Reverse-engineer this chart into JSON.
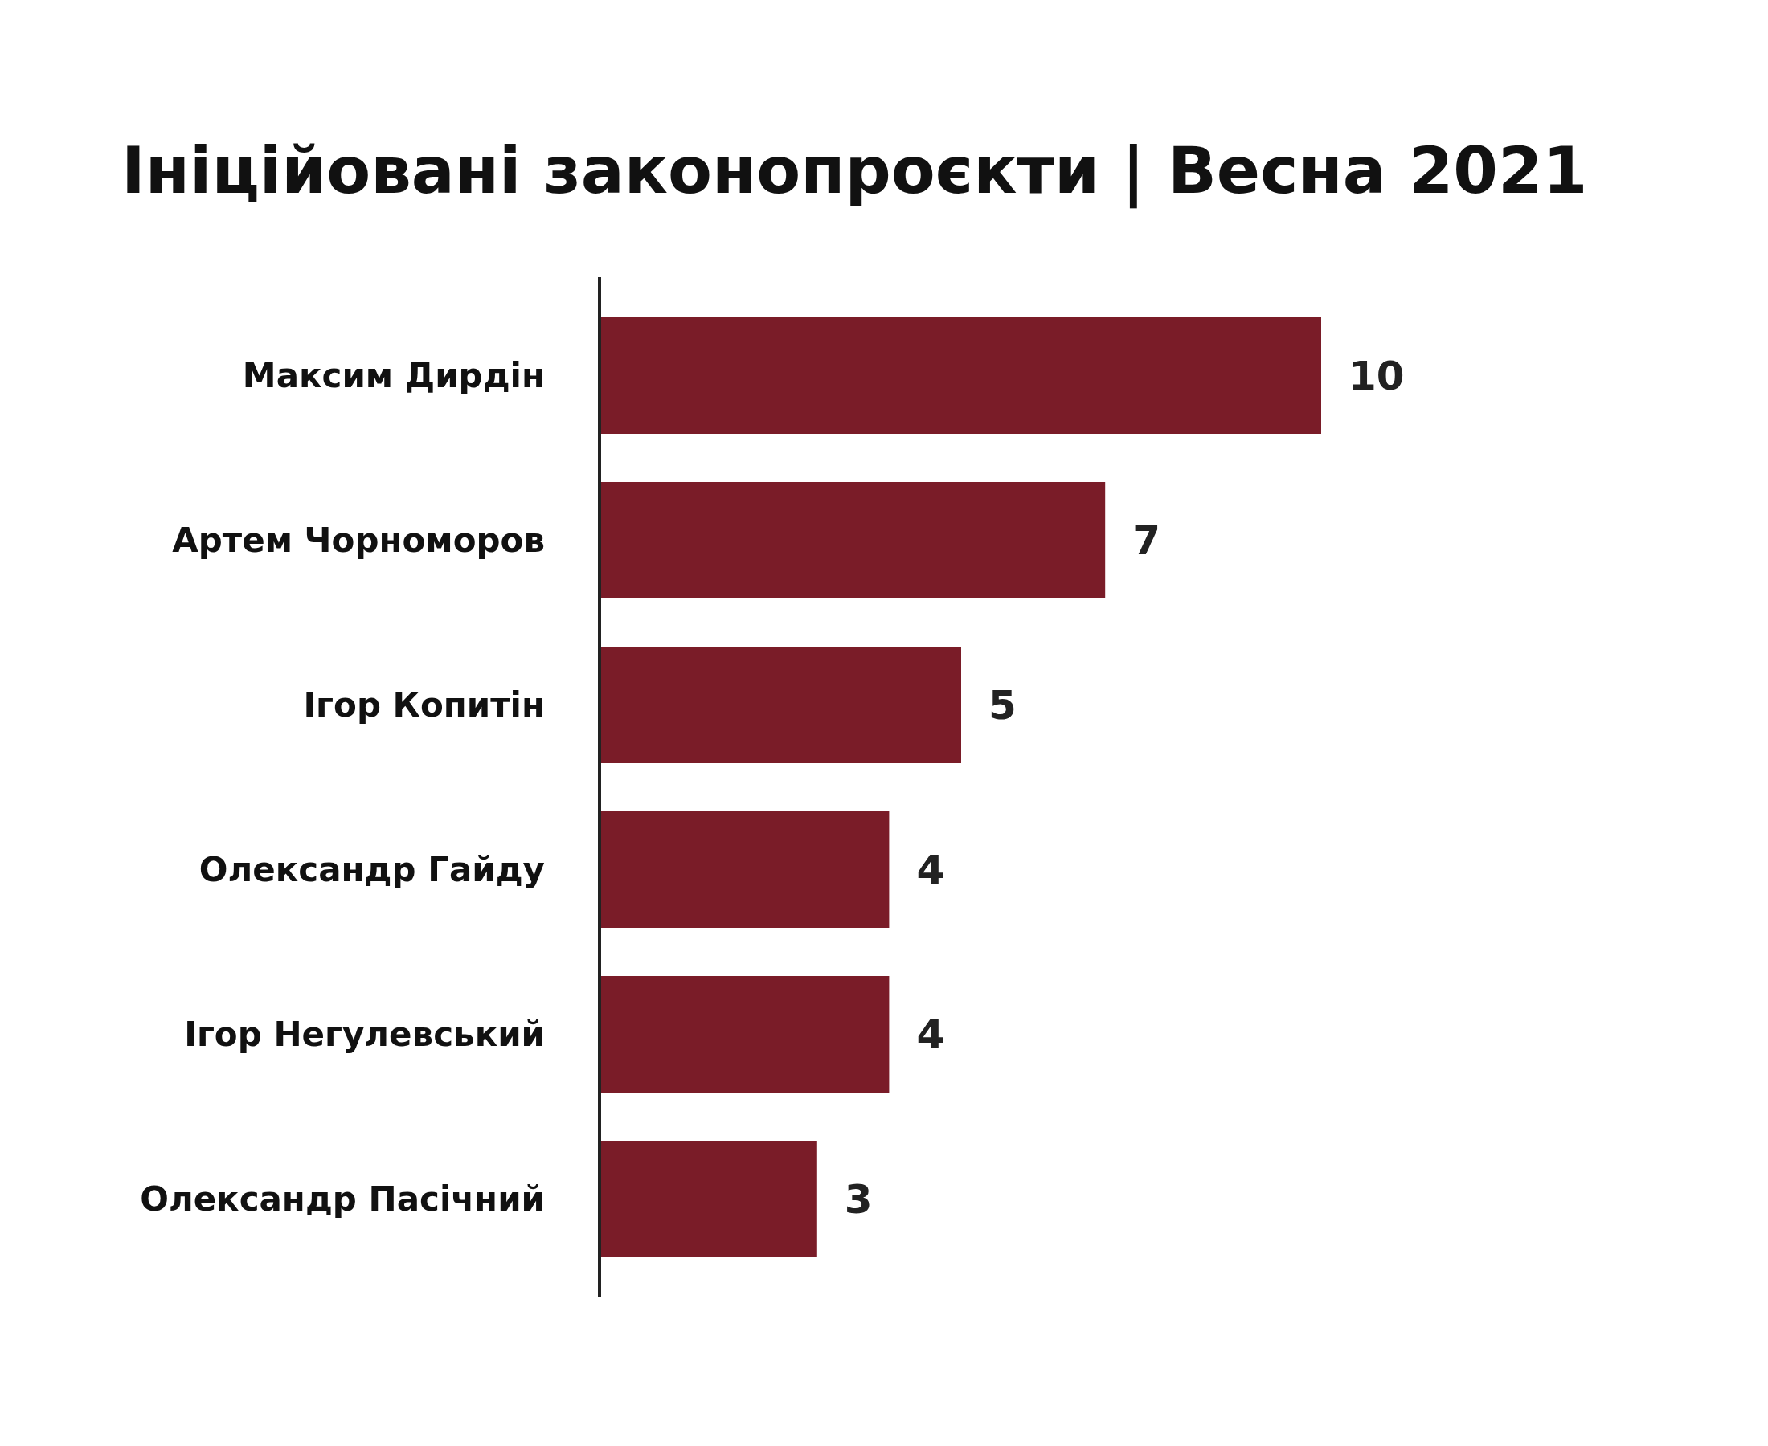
{
  "chart_data": {
    "type": "bar",
    "orientation": "horizontal",
    "title": "Ініційовані законопроєкти | Весна 2021",
    "categories": [
      "Максим Дирдін",
      "Артем Чорноморов",
      "Ігор Копитін",
      "Олександр Гайду",
      "Ігор Негулевський",
      "Олександр Пасічний"
    ],
    "values": [
      10,
      7,
      5,
      4,
      4,
      3
    ],
    "color": "#7a1c28",
    "data_labels": true
  }
}
